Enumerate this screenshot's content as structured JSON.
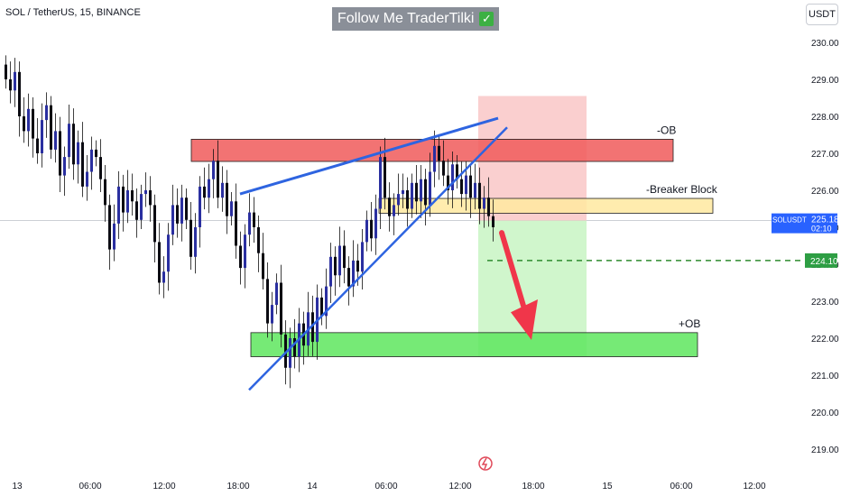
{
  "header": {
    "symbol": "SOL / TetherUS, 15, BINANCE",
    "banner_text": "Follow Me TraderTilki",
    "banner_check": "✓",
    "currency_button": "USDT"
  },
  "price_tag": {
    "symbol": "SOLUSDT",
    "price": "225.18",
    "countdown": "02:10"
  },
  "target_tag": {
    "price": "224.10"
  },
  "colors": {
    "bull": "#2a2fa0",
    "bear": "#0b0b12",
    "trendline": "#2e64e0",
    "bear_ob": "#f05a5a",
    "breaker": "#ffe9a0",
    "bull_ob": "#5ee65e",
    "stop_zone": "#f9c7c7",
    "target_zone": "#c8f5c3",
    "arrow": "#f0364a",
    "dashed": "#2e8b2e"
  },
  "chart_data": {
    "type": "candlestick",
    "y_axis": {
      "min": 218.8,
      "max": 230.2,
      "ticks": [
        219,
        220,
        221,
        222,
        223,
        224,
        225,
        226,
        227,
        228,
        229,
        230
      ]
    },
    "x_axis": {
      "ticks": [
        "13",
        "06:00",
        "12:00",
        "18:00",
        "14",
        "06:00",
        "12:00",
        "18:00",
        "15",
        "06:00",
        "12:00"
      ]
    },
    "zones": [
      {
        "label": "-OB",
        "low": 226.78,
        "high": 227.38
      },
      {
        "label": "-Breaker Block",
        "low": 225.38,
        "high": 225.78
      },
      {
        "label": "+OB",
        "low": 221.5,
        "high": 222.15
      }
    ],
    "trade": {
      "entry": 225.18,
      "stop": 228.55,
      "target": 221.5,
      "dashed_level": 224.1
    },
    "last_price": 225.18,
    "candles_ohlc_close_path": [
      229.0,
      228.7,
      229.2,
      228.0,
      227.6,
      228.2,
      227.4,
      227.0,
      227.9,
      228.3,
      227.1,
      227.6,
      226.4,
      226.9,
      227.8,
      226.7,
      227.3,
      226.1,
      226.5,
      227.1,
      226.9,
      226.3,
      225.6,
      224.4,
      225.1,
      226.1,
      225.4,
      226.0,
      225.7,
      225.2,
      225.9,
      226.0,
      225.6,
      224.6,
      223.5,
      223.8,
      224.8,
      225.6,
      225.1,
      225.8,
      225.2,
      224.2,
      225.0,
      226.1,
      225.8,
      226.3,
      226.8,
      225.8,
      226.2,
      225.3,
      225.7,
      224.5,
      223.9,
      224.8,
      225.4,
      225.0,
      224.3,
      223.6,
      222.4,
      222.9,
      223.5,
      222.1,
      221.2,
      222.0,
      221.5,
      222.4,
      221.8,
      222.7,
      221.9,
      223.1,
      222.6,
      223.4,
      224.2,
      223.7,
      224.5,
      223.9,
      223.4,
      224.1,
      223.8,
      224.6,
      225.2,
      224.7,
      225.5,
      226.9,
      225.8,
      225.3,
      225.6,
      225.9,
      226.0,
      225.5,
      226.2,
      225.7,
      226.3,
      225.6,
      226.5,
      227.2,
      226.8,
      226.4,
      226.0,
      226.7,
      226.3,
      225.9,
      226.4,
      225.8,
      226.2,
      225.5,
      225.8,
      225.3,
      225.0
    ]
  }
}
